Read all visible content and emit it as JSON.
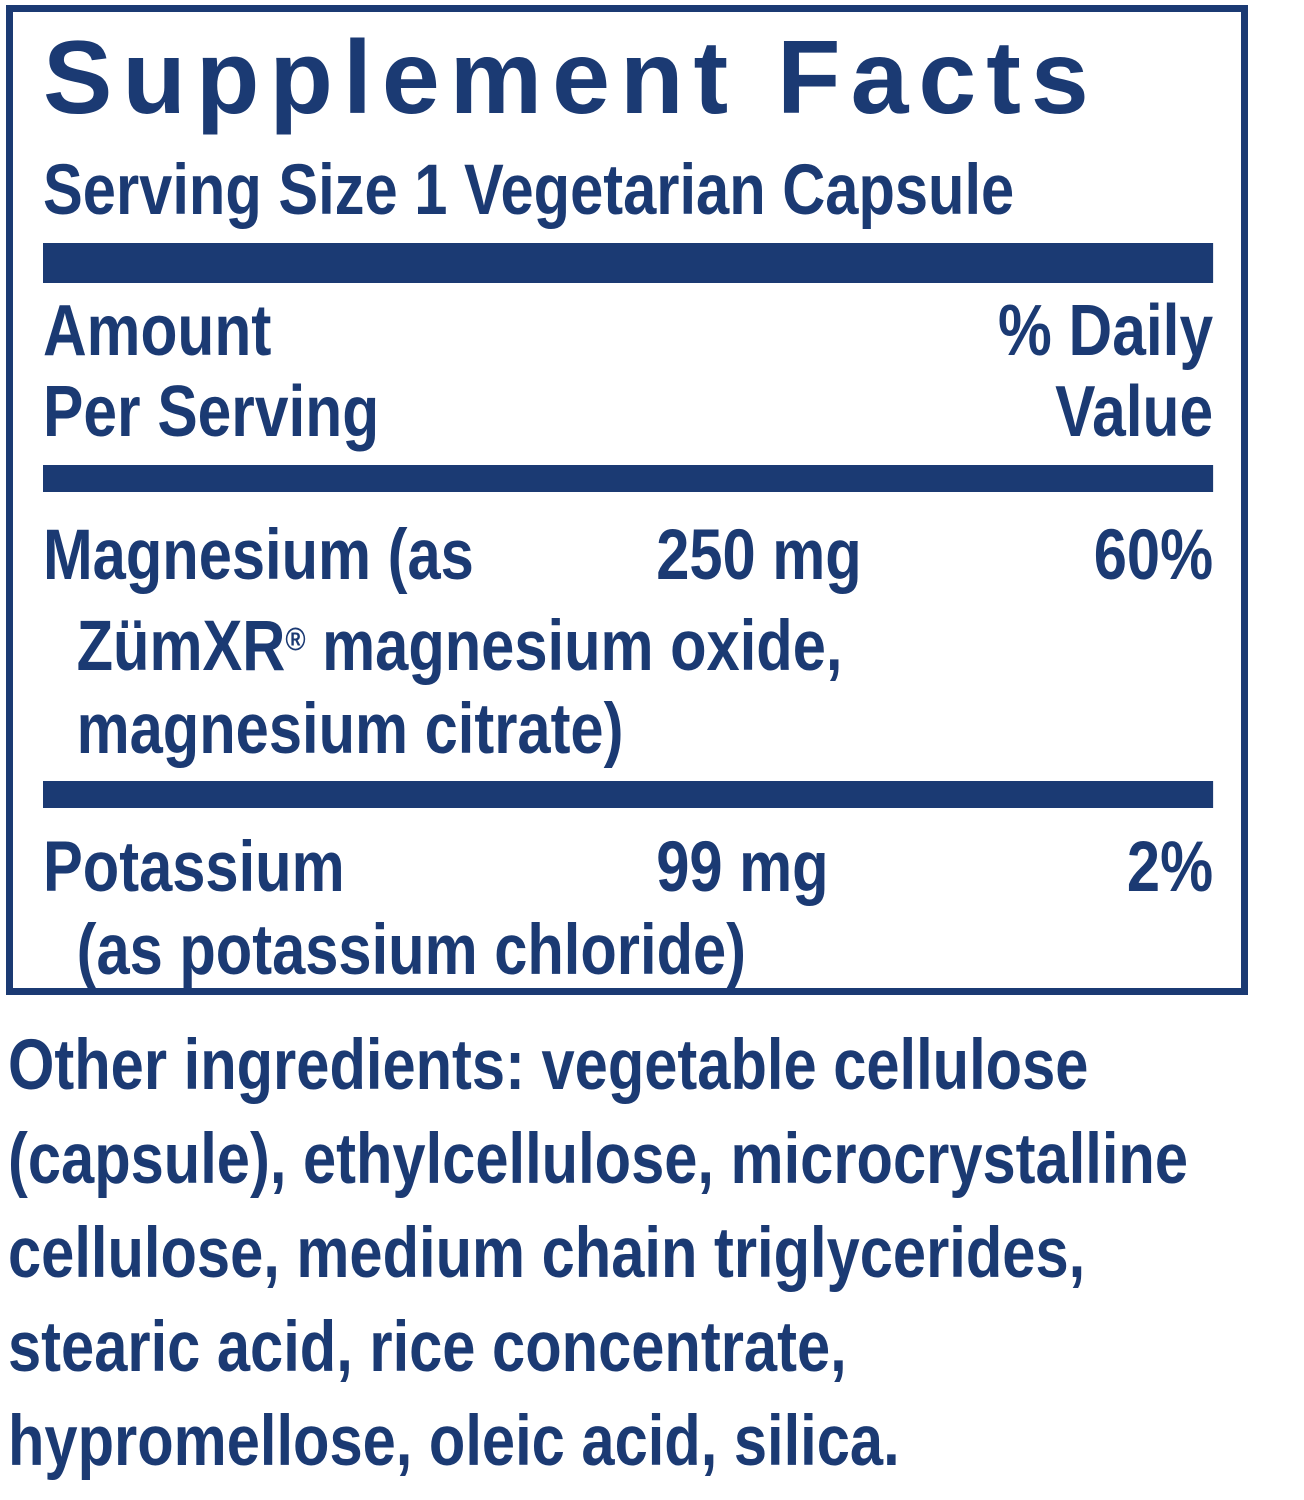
{
  "panel": {
    "title": "Supplement Facts",
    "serving_size": "Serving Size 1 Vegetarian Capsule",
    "column_headers": {
      "amount_line1": "Amount",
      "amount_line2": "Per Serving",
      "daily_value_line1": "% Daily",
      "daily_value_line2": "Value"
    },
    "rows": [
      {
        "name_line1": "Magnesium (as",
        "name_line2_pre": "ZümXR",
        "name_line2_reg": "®",
        "name_line2_post": " magnesium oxide,",
        "name_line3": "magnesium citrate)",
        "amount": "250 mg",
        "daily_value": "60%"
      },
      {
        "name_line1": "Potassium",
        "name_line2": "(as potassium chloride)",
        "amount": "99 mg",
        "daily_value": "2%"
      }
    ]
  },
  "other_ingredients": {
    "lines": [
      "Other ingredients: vegetable cellulose",
      "(capsule), ethylcellulose, microcrystalline",
      "cellulose, medium chain triglycerides,",
      "stearic acid, rice concentrate,",
      "hypromellose, oleic acid, silica."
    ]
  },
  "colors": {
    "navy": "#1b3a73",
    "background": "#ffffff"
  }
}
